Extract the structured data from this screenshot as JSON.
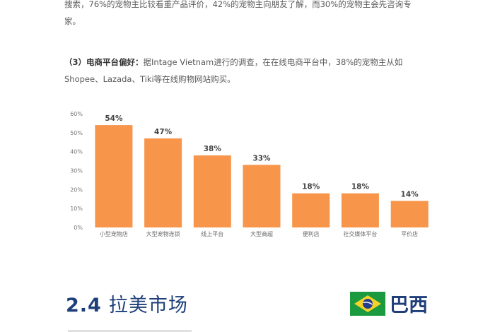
{
  "paragraph1": {
    "line1": "搜索，76%的宠物主比较看重产品评价，42%的宠物主向朋友了解，而30%的宠物主会先咨询专",
    "line2": "家。"
  },
  "paragraph2": {
    "heading": "（3）电商平台偏好：",
    "line1_rest": "据Intage Vietnam进行的调查，在在线电商平台中，38%的宠物主从如",
    "line2": "Shopee、Lazada、Tiki等在线购物网站购买。"
  },
  "chart_data": {
    "type": "bar",
    "categories": [
      "小型宠物店",
      "大型宠物连锁",
      "线上平台",
      "大型商超",
      "便利店",
      "社交媒体平台",
      "平价店"
    ],
    "values": [
      54,
      47,
      38,
      33,
      18,
      18,
      14
    ],
    "value_labels": [
      "54%",
      "47%",
      "38%",
      "33%",
      "18%",
      "18%",
      "14%"
    ],
    "ylim": [
      0,
      60
    ],
    "yticks": [
      "0%",
      "10%",
      "20%",
      "30%",
      "40%",
      "50%",
      "60%"
    ],
    "grid": false,
    "bar_color": "#f7954a"
  },
  "section": {
    "number": "2.4",
    "title": "拉美市场"
  },
  "country": {
    "name": "巴西",
    "flag_colors": {
      "green": "#1b9a3f",
      "yellow": "#f5d22a",
      "blue": "#243d8c"
    }
  }
}
